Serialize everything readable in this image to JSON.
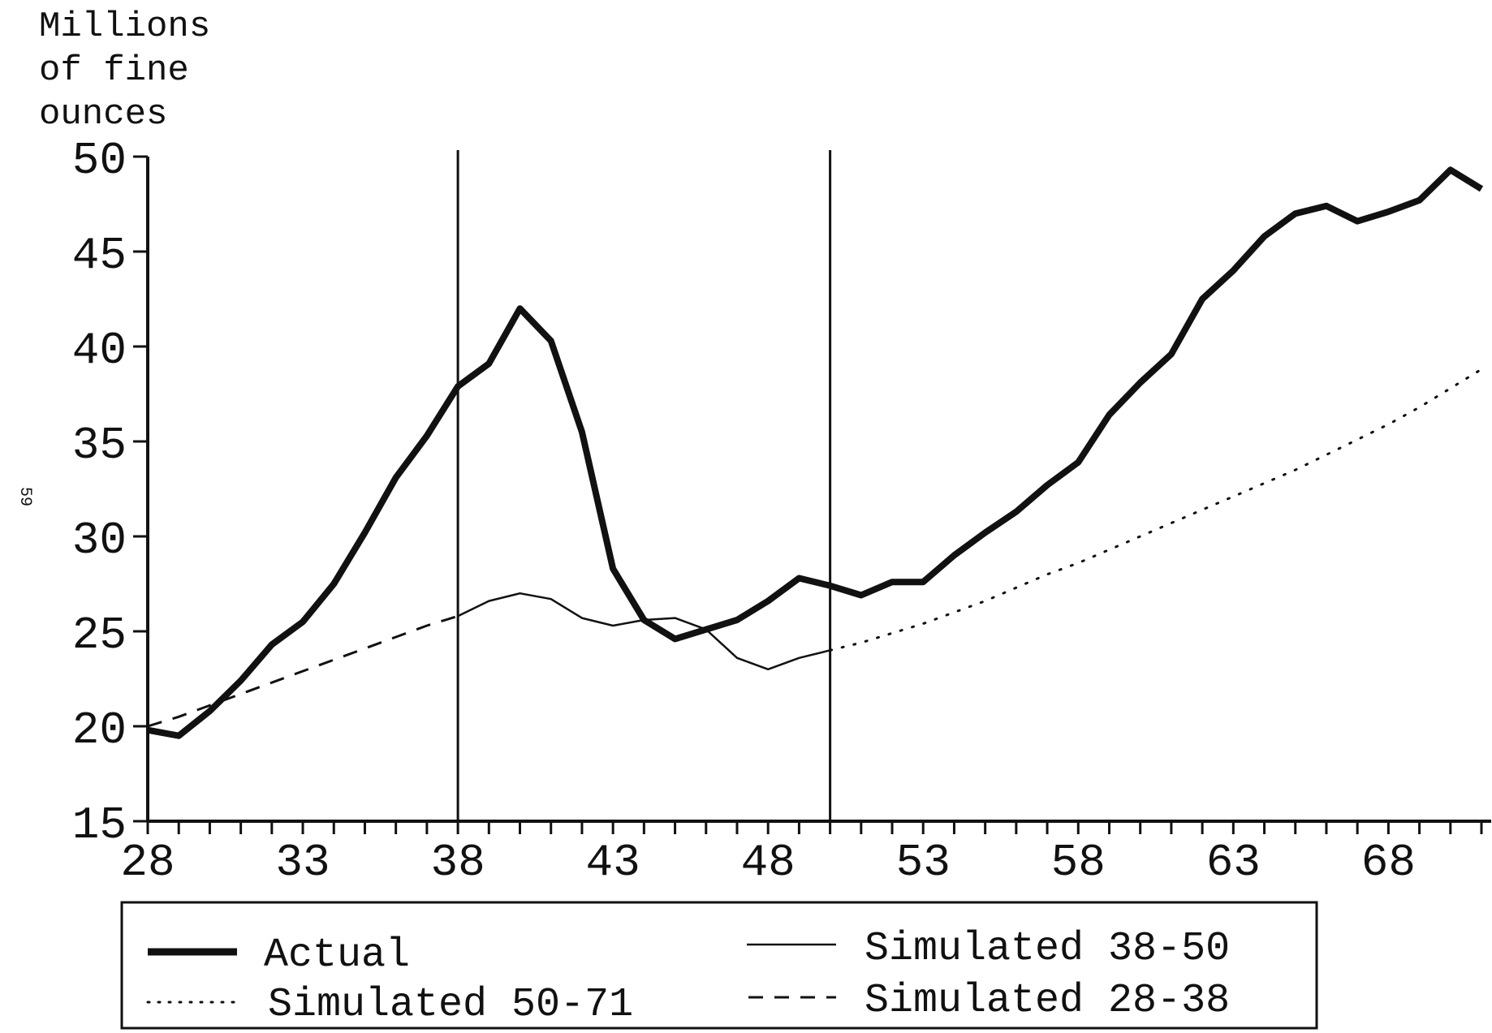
{
  "page_number": "59",
  "chart_data": {
    "type": "line",
    "ylabel": [
      "Millions",
      "of fine",
      "ounces"
    ],
    "xlabel": "",
    "xlim": [
      28,
      71
    ],
    "ylim": [
      15,
      50
    ],
    "x_ticks": [
      28,
      33,
      38,
      43,
      48,
      53,
      58,
      63,
      68
    ],
    "y_ticks": [
      15,
      20,
      25,
      30,
      35,
      40,
      45,
      50
    ],
    "vertical_lines": [
      38,
      50
    ],
    "grid": false,
    "legend_position": "bottom",
    "series": [
      {
        "name": "Actual",
        "style": "thick-solid",
        "x": [
          28,
          29,
          30,
          31,
          32,
          33,
          34,
          35,
          36,
          37,
          38,
          39,
          40,
          41,
          42,
          43,
          44,
          45,
          46,
          47,
          48,
          49,
          50,
          51,
          52,
          53,
          54,
          55,
          56,
          57,
          58,
          59,
          60,
          61,
          62,
          63,
          64,
          65,
          66,
          67,
          68,
          69,
          70,
          71
        ],
        "y": [
          19.8,
          19.5,
          20.8,
          22.4,
          24.3,
          25.5,
          27.5,
          30.2,
          33.1,
          35.3,
          37.9,
          39.1,
          42.0,
          40.3,
          35.5,
          28.3,
          25.6,
          24.6,
          25.1,
          25.6,
          26.6,
          27.8,
          27.4,
          26.9,
          27.6,
          27.6,
          29.0,
          30.2,
          31.3,
          32.7,
          33.9,
          36.4,
          38.1,
          39.6,
          42.5,
          44.0,
          45.8,
          47.0,
          47.4,
          46.6,
          47.1,
          47.7,
          49.3,
          48.3
        ]
      },
      {
        "name": "Simulated 38-50",
        "style": "thin-solid",
        "x": [
          38,
          39,
          40,
          41,
          42,
          43,
          44,
          45,
          46,
          47,
          48,
          49,
          50
        ],
        "y": [
          25.8,
          26.6,
          27.0,
          26.7,
          25.7,
          25.3,
          25.6,
          25.7,
          25.1,
          23.6,
          23.0,
          23.6,
          24.0
        ]
      },
      {
        "name": "Simulated 50-71",
        "style": "dotted",
        "x": [
          50,
          51,
          52,
          53,
          54,
          55,
          56,
          57,
          58,
          59,
          60,
          61,
          62,
          63,
          64,
          65,
          66,
          67,
          68,
          69,
          70,
          71
        ],
        "y": [
          24.0,
          24.4,
          24.9,
          25.4,
          26.0,
          26.6,
          27.3,
          28.0,
          28.6,
          29.3,
          30.0,
          30.7,
          31.4,
          32.1,
          32.8,
          33.5,
          34.3,
          35.1,
          35.9,
          36.8,
          37.8,
          38.8
        ]
      },
      {
        "name": "Simulated 28-38",
        "style": "dashed",
        "x": [
          28,
          29,
          30,
          31,
          32,
          33,
          34,
          35,
          36,
          37,
          38
        ],
        "y": [
          20.0,
          20.5,
          21.1,
          21.7,
          22.3,
          22.9,
          23.5,
          24.1,
          24.7,
          25.3,
          25.8
        ]
      }
    ]
  }
}
